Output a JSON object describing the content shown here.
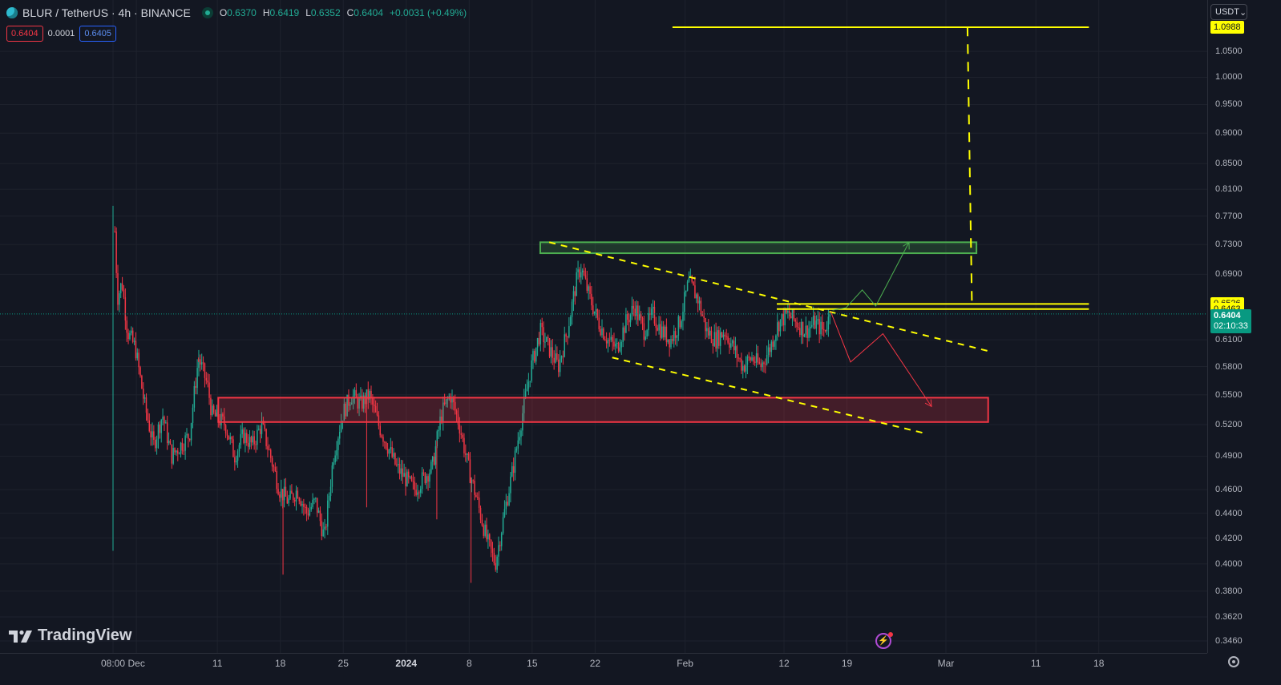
{
  "header": {
    "symbol": "BLUR / TetherUS · 4h · BINANCE",
    "ohlc": [
      {
        "k": "O",
        "v": "0.6370"
      },
      {
        "k": "H",
        "v": "0.6419"
      },
      {
        "k": "L",
        "v": "0.6352"
      },
      {
        "k": "C",
        "v": "0.6404"
      },
      {
        "k": "",
        "v": "+0.0031 (+0.49%)"
      }
    ]
  },
  "trade": {
    "sell": "0.6404",
    "spread": "0.0001",
    "buy": "0.6405"
  },
  "currency": "USDT",
  "watermark": "TradingView",
  "colors": {
    "up": "#22ab94",
    "down": "#f23645",
    "drawing_yellow": "#ffff00",
    "green_zone": "#4caf50",
    "red_zone": "#f23645"
  },
  "chart_data": {
    "type": "candlestick",
    "title": "BLUR / TetherUS · 4h · BINANCE",
    "scale": "log",
    "ylim": [
      0.342,
      1.1
    ],
    "price_ticks": [
      "1.0500",
      "1.0000",
      "0.9500",
      "0.9000",
      "0.8500",
      "0.8100",
      "0.7700",
      "0.7300",
      "0.6900",
      "0.6100",
      "0.5800",
      "0.5500",
      "0.5200",
      "0.4900",
      "0.4600",
      "0.4400",
      "0.4200",
      "0.4000",
      "0.3800",
      "0.3620",
      "0.3460"
    ],
    "price_tick_values": [
      1.05,
      1.0,
      0.95,
      0.9,
      0.85,
      0.81,
      0.77,
      0.73,
      0.69,
      0.61,
      0.58,
      0.55,
      0.52,
      0.49,
      0.46,
      0.44,
      0.42,
      0.4,
      0.38,
      0.362,
      0.346
    ],
    "price_labels": [
      {
        "text": "1.0988",
        "value": 1.0988,
        "kind": "yellow"
      },
      {
        "text": "0.6526",
        "value": 0.6526,
        "kind": "yellow"
      },
      {
        "text": "0.6463",
        "value": 0.6463,
        "kind": "yellow"
      }
    ],
    "current_price": {
      "price": "0.6404",
      "value": 0.6404,
      "countdown": "02:10:33"
    },
    "time_ticks": [
      {
        "label": "08:00",
        "day": 0,
        "bold": false
      },
      {
        "label": "Dec",
        "day": 2.6,
        "bold": false
      },
      {
        "label": "11",
        "day": 11.6,
        "bold": false
      },
      {
        "label": "18",
        "day": 18.6,
        "bold": false
      },
      {
        "label": "25",
        "day": 25.6,
        "bold": false
      },
      {
        "label": "2024",
        "day": 32.6,
        "bold": true
      },
      {
        "label": "8",
        "day": 39.6,
        "bold": false
      },
      {
        "label": "15",
        "day": 46.6,
        "bold": false
      },
      {
        "label": "22",
        "day": 53.6,
        "bold": false
      },
      {
        "label": "Feb",
        "day": 63.6,
        "bold": false
      },
      {
        "label": "12",
        "day": 74.6,
        "bold": false
      },
      {
        "label": "19",
        "day": 81.6,
        "bold": false
      },
      {
        "label": "Mar",
        "day": 92.6,
        "bold": false
      },
      {
        "label": "11",
        "day": 102.6,
        "bold": false
      },
      {
        "label": "18",
        "day": 109.6,
        "bold": false
      }
    ],
    "price_path": [
      [
        0,
        0.41
      ],
      [
        0.1,
        0.78
      ],
      [
        0.5,
        0.66
      ],
      [
        1.0,
        0.68
      ],
      [
        1.6,
        0.62
      ],
      [
        2.5,
        0.6
      ],
      [
        3.5,
        0.54
      ],
      [
        4.5,
        0.5
      ],
      [
        5.5,
        0.53
      ],
      [
        6.5,
        0.49
      ],
      [
        7.5,
        0.5
      ],
      [
        8.5,
        0.51
      ],
      [
        9.5,
        0.59
      ],
      [
        10.5,
        0.56
      ],
      [
        11.0,
        0.53
      ],
      [
        12.5,
        0.52
      ],
      [
        13.5,
        0.49
      ],
      [
        14.5,
        0.51
      ],
      [
        15.5,
        0.5
      ],
      [
        16.5,
        0.52
      ],
      [
        17.5,
        0.49
      ],
      [
        18.5,
        0.46
      ],
      [
        19.5,
        0.45
      ],
      [
        20.5,
        0.46
      ],
      [
        21.5,
        0.44
      ],
      [
        22.5,
        0.45
      ],
      [
        23.5,
        0.42
      ],
      [
        24.5,
        0.49
      ],
      [
        25.5,
        0.53
      ],
      [
        26.5,
        0.55
      ],
      [
        27.5,
        0.54
      ],
      [
        28.5,
        0.55
      ],
      [
        29.5,
        0.52
      ],
      [
        30.5,
        0.5
      ],
      [
        31.5,
        0.48
      ],
      [
        32.5,
        0.47
      ],
      [
        33.5,
        0.46
      ],
      [
        34.5,
        0.47
      ],
      [
        35.5,
        0.48
      ],
      [
        36.5,
        0.53
      ],
      [
        37.5,
        0.55
      ],
      [
        38.5,
        0.52
      ],
      [
        39.5,
        0.48
      ],
      [
        40.5,
        0.45
      ],
      [
        41.5,
        0.42
      ],
      [
        42.5,
        0.4
      ],
      [
        43.5,
        0.44
      ],
      [
        44.5,
        0.48
      ],
      [
        45.5,
        0.53
      ],
      [
        46.5,
        0.58
      ],
      [
        47.5,
        0.62
      ],
      [
        48.5,
        0.6
      ],
      [
        49.5,
        0.58
      ],
      [
        50.5,
        0.62
      ],
      [
        51.5,
        0.68
      ],
      [
        52.0,
        0.7
      ],
      [
        53.0,
        0.66
      ],
      [
        54.0,
        0.63
      ],
      [
        55.0,
        0.61
      ],
      [
        56.0,
        0.6
      ],
      [
        57.0,
        0.63
      ],
      [
        58.0,
        0.65
      ],
      [
        59.0,
        0.62
      ],
      [
        60.0,
        0.64
      ],
      [
        61.0,
        0.62
      ],
      [
        62.0,
        0.61
      ],
      [
        63.0,
        0.63
      ],
      [
        64.0,
        0.68
      ],
      [
        65.0,
        0.66
      ],
      [
        66.0,
        0.62
      ],
      [
        67.0,
        0.61
      ],
      [
        68.0,
        0.62
      ],
      [
        69.0,
        0.6
      ],
      [
        70.0,
        0.58
      ],
      [
        71.0,
        0.59
      ],
      [
        72.0,
        0.58
      ],
      [
        73.0,
        0.6
      ],
      [
        74.0,
        0.63
      ],
      [
        75.0,
        0.64
      ],
      [
        76.0,
        0.63
      ],
      [
        77.0,
        0.62
      ],
      [
        78.0,
        0.63
      ],
      [
        79.0,
        0.62
      ],
      [
        79.8,
        0.6404
      ]
    ],
    "drawings": {
      "green_zone": {
        "x1": 47.5,
        "x2": 96.0,
        "y1": 0.733,
        "y2": 0.718
      },
      "red_zone": {
        "x1": 11.7,
        "x2": 97.3,
        "y1": 0.547,
        "y2": 0.5225
      },
      "resistance_lines": [
        {
          "x1": 73.8,
          "x2": 108.5,
          "y": 0.6526
        },
        {
          "x1": 73.8,
          "x2": 108.5,
          "y": 0.6463
        }
      ],
      "target_line": {
        "x1": 62.2,
        "x2": 108.5,
        "y": 1.0988
      },
      "target_vertical": {
        "x1": 95.0,
        "x2": 95.5,
        "y1": 1.1,
        "y2": 0.648
      },
      "upper_trendline": {
        "x1": 48.5,
        "y1": 0.733,
        "x2": 97.8,
        "y2": 0.596
      },
      "lower_trendline": {
        "x1": 55.5,
        "y1": 0.59,
        "x2": 90.5,
        "y2": 0.511
      },
      "green_arrow": [
        [
          80,
          0.645
        ],
        [
          81.5,
          0.648
        ],
        [
          83.3,
          0.67
        ],
        [
          84.8,
          0.65
        ],
        [
          88.5,
          0.733
        ]
      ],
      "red_arrow": [
        [
          79.8,
          0.643
        ],
        [
          82.0,
          0.585
        ],
        [
          85.6,
          0.617
        ],
        [
          91.0,
          0.538
        ]
      ]
    }
  }
}
